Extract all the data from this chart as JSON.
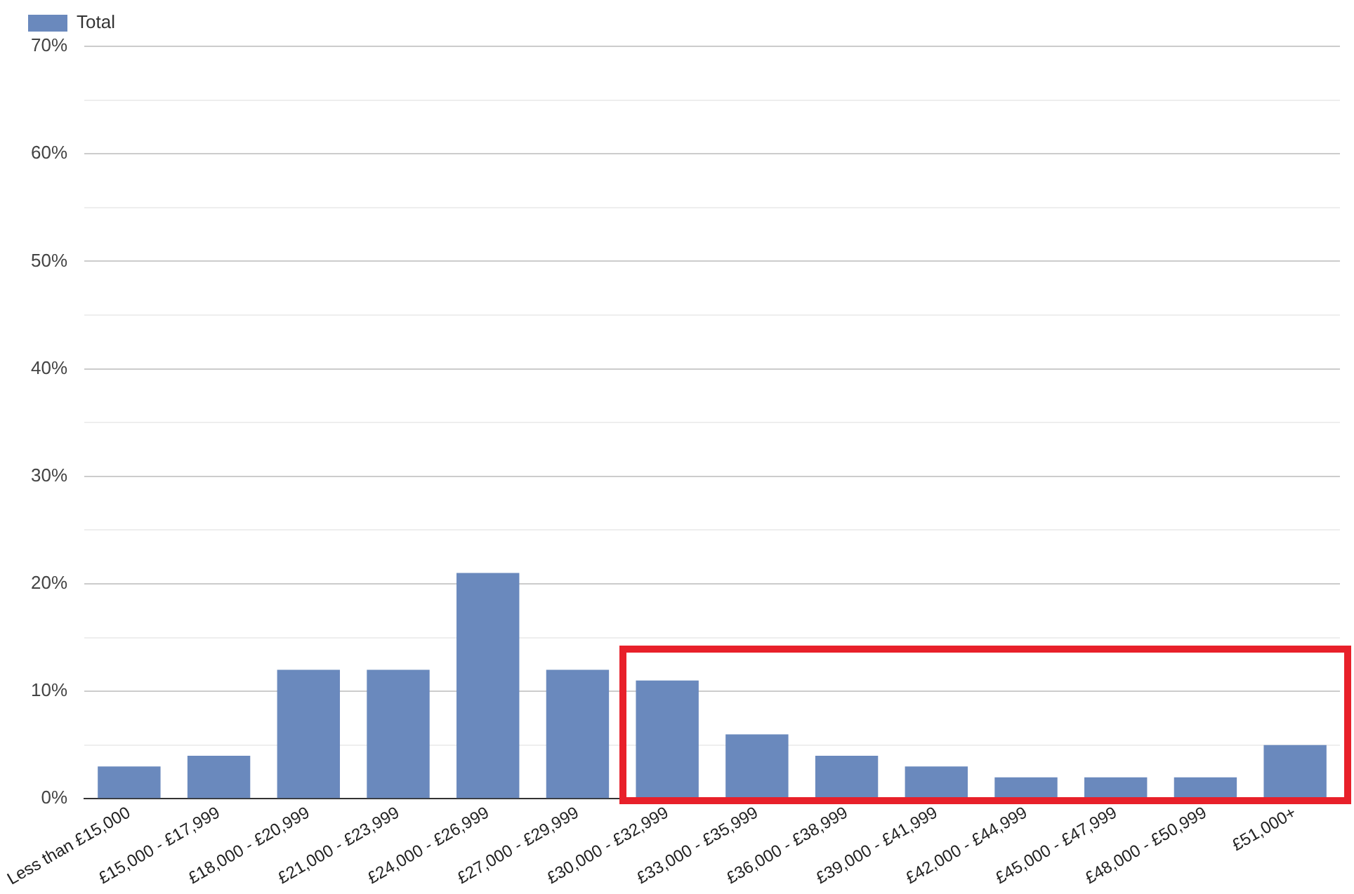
{
  "chart_data": {
    "type": "bar",
    "categories": [
      "Less than £15,000",
      "£15,000 - £17,999",
      "£18,000 - £20,999",
      "£21,000 - £23,999",
      "£24,000 - £26,999",
      "£27,000 - £29,999",
      "£30,000 - £32,999",
      "£33,000 - £35,999",
      "£36,000 - £38,999",
      "£39,000 - £41,999",
      "£42,000 - £44,999",
      "£45,000 - £47,999",
      "£48,000 - £50,999",
      "£51,000+"
    ],
    "series": [
      {
        "name": "Total",
        "color": "#6a89bd",
        "values": [
          3,
          4,
          12,
          12,
          21,
          12,
          11,
          6,
          4,
          3,
          2,
          2,
          2,
          5
        ]
      }
    ],
    "ylim": [
      0,
      70
    ],
    "yticks": [
      {
        "value": 0,
        "label": "0%"
      },
      {
        "value": 5,
        "label": null
      },
      {
        "value": 10,
        "label": "10%"
      },
      {
        "value": 15,
        "label": null
      },
      {
        "value": 20,
        "label": "20%"
      },
      {
        "value": 25,
        "label": null
      },
      {
        "value": 30,
        "label": "30%"
      },
      {
        "value": 35,
        "label": null
      },
      {
        "value": 40,
        "label": "40%"
      },
      {
        "value": 45,
        "label": null
      },
      {
        "value": 50,
        "label": "50%"
      },
      {
        "value": 55,
        "label": null
      },
      {
        "value": 60,
        "label": "60%"
      },
      {
        "value": 65,
        "label": null
      },
      {
        "value": 70,
        "label": "70%"
      }
    ],
    "grid": "y",
    "legend": "top left"
  }
}
